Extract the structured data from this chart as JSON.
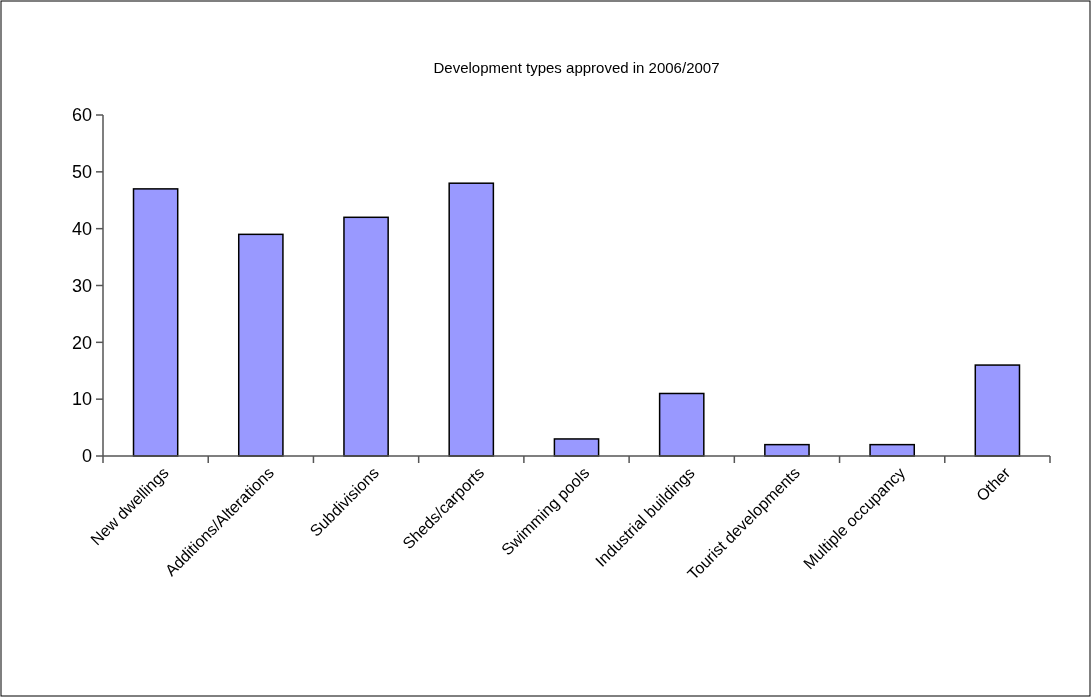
{
  "chart_data": {
    "type": "bar",
    "title": "Development types approved in 2006/2007",
    "categories": [
      "New dwellings",
      "Additions/Alterations",
      "Subdivisions",
      "Sheds/carports",
      "Swimming pools",
      "Industrial buildings",
      "Tourist developments",
      "Multiple occupancy",
      "Other"
    ],
    "values": [
      47,
      39,
      42,
      48,
      3,
      11,
      2,
      2,
      16
    ],
    "color": "#9999ff",
    "ylim": [
      0,
      60
    ],
    "yticks": [
      0,
      10,
      20,
      30,
      40,
      50,
      60
    ],
    "grid": false
  }
}
